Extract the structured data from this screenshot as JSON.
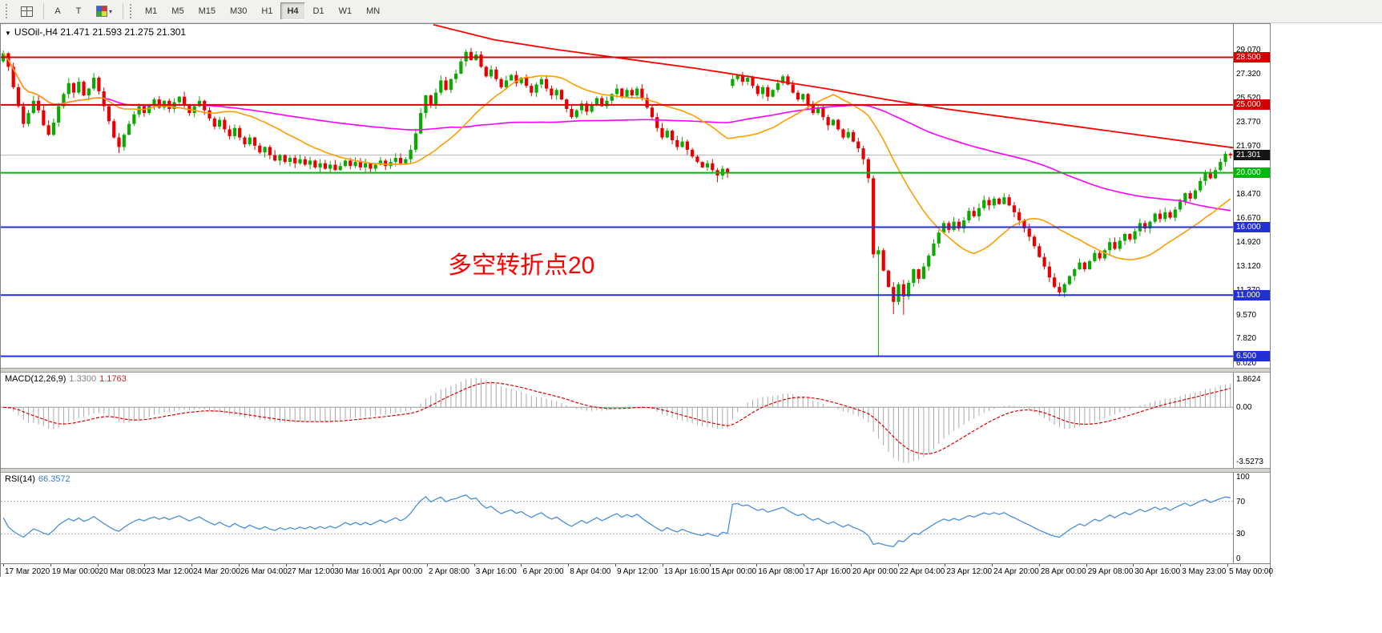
{
  "toolbar": {
    "tools": {
      "text_a": "A",
      "text_t": "T",
      "caret": "▾"
    },
    "timeframes": [
      "M1",
      "M5",
      "M15",
      "M30",
      "H1",
      "H4",
      "D1",
      "W1",
      "MN"
    ],
    "active_timeframe": "H4"
  },
  "chart_header": {
    "collapse": "▼",
    "symbol_period": "USOil-,H4",
    "ohlc": "21.471 21.593 21.275 21.301"
  },
  "annotation": {
    "text": "多空转折点20",
    "color": "#ff0000"
  },
  "price_axis": {
    "ticks": [
      {
        "v": 29.07,
        "t": "29.070"
      },
      {
        "v": 27.32,
        "t": "27.320"
      },
      {
        "v": 25.52,
        "t": "25.520"
      },
      {
        "v": 23.77,
        "t": "23.770"
      },
      {
        "v": 21.97,
        "t": "21.970"
      },
      {
        "v": 18.47,
        "t": "18.470"
      },
      {
        "v": 16.67,
        "t": "16.670"
      },
      {
        "v": 14.92,
        "t": "14.920"
      },
      {
        "v": 13.12,
        "t": "13.120"
      },
      {
        "v": 11.37,
        "t": "11.370"
      },
      {
        "v": 9.57,
        "t": "9.570"
      },
      {
        "v": 7.82,
        "t": "7.820"
      },
      {
        "v": 6.02,
        "t": "6.020"
      }
    ],
    "tags": [
      {
        "v": 28.5,
        "t": "28.500",
        "bg": "#d40000"
      },
      {
        "v": 25.0,
        "t": "25.000",
        "bg": "#d40000"
      },
      {
        "v": 21.301,
        "t": "21.301",
        "bg": "#151515"
      },
      {
        "v": 20.0,
        "t": "20.000",
        "bg": "#00b80d"
      },
      {
        "v": 16.0,
        "t": "16.000",
        "bg": "#2330d6"
      },
      {
        "v": 11.0,
        "t": "11.000",
        "bg": "#2330d6"
      },
      {
        "v": 6.5,
        "t": "6.500",
        "bg": "#2330d6"
      }
    ]
  },
  "macd_panel": {
    "name": "MACD(12,26,9)",
    "v1": "1.3300",
    "v2": "1.1763",
    "axis_top": "1.8624",
    "axis_zero": "0.00",
    "axis_bottom": "-3.5273"
  },
  "rsi_panel": {
    "name": "RSI(14)",
    "value": "66.3572",
    "axis": [
      {
        "v": 100,
        "t": "100"
      },
      {
        "v": 70,
        "t": "70"
      },
      {
        "v": 30,
        "t": "30"
      },
      {
        "v": 0,
        "t": "0"
      }
    ],
    "levels": [
      70,
      30
    ]
  },
  "time_axis": [
    "17 Mar 2020",
    "19 Mar 00:00",
    "20 Mar 08:00",
    "23 Mar 12:00",
    "24 Mar 20:00",
    "26 Mar 04:00",
    "27 Mar 12:00",
    "30 Mar 16:00",
    "1 Apr 00:00",
    "2 Apr 08:00",
    "3 Apr 16:00",
    "6 Apr 20:00",
    "8 Apr 04:00",
    "9 Apr 12:00",
    "13 Apr 16:00",
    "15 Apr 00:00",
    "16 Apr 08:00",
    "17 Apr 16:00",
    "20 Apr 00:00",
    "22 Apr 04:00",
    "23 Apr 12:00",
    "24 Apr 20:00",
    "28 Apr 00:00",
    "29 Apr 08:00",
    "30 Apr 16:00",
    "3 May 23:00",
    "5 May 00:00"
  ],
  "chart_data": {
    "type": "candlestick",
    "symbol": "USOil-",
    "period": "H4",
    "price_top": 30.95,
    "price_bottom": 5.65,
    "current_price": 21.301,
    "current_bar": {
      "o": 21.471,
      "h": 21.593,
      "l": 21.275,
      "c": 21.301
    },
    "up_color": "#0caa00",
    "down_color": "#e60000",
    "closes": [
      28.8,
      27.8,
      26.3,
      24.9,
      23.6,
      24.4,
      25.3,
      24.6,
      23.5,
      22.8,
      23.7,
      24.9,
      25.8,
      26.6,
      25.9,
      26.7,
      25.7,
      26.2,
      27.0,
      26.0,
      24.9,
      23.8,
      22.6,
      21.9,
      22.8,
      23.6,
      24.3,
      24.9,
      24.4,
      25.0,
      25.4,
      24.8,
      25.3,
      24.7,
      25.2,
      25.6,
      25.0,
      24.4,
      24.9,
      25.3,
      24.6,
      24.0,
      23.4,
      23.9,
      23.2,
      22.7,
      23.3,
      22.6,
      22.1,
      22.6,
      22.0,
      21.5,
      21.9,
      21.3,
      20.9,
      21.3,
      20.8,
      21.1,
      20.7,
      21.0,
      20.6,
      20.9,
      20.4,
      20.7,
      20.3,
      20.6,
      20.2,
      20.5,
      20.9,
      20.5,
      20.8,
      20.4,
      20.7,
      20.3,
      20.6,
      20.9,
      20.5,
      20.8,
      21.1,
      20.7,
      21.0,
      21.7,
      22.9,
      24.4,
      25.7,
      25.0,
      25.9,
      26.8,
      26.1,
      26.9,
      27.3,
      28.2,
      28.9,
      28.3,
      28.7,
      27.8,
      27.1,
      27.6,
      26.9,
      26.3,
      26.8,
      27.2,
      26.6,
      27.0,
      26.4,
      25.9,
      26.5,
      26.9,
      26.2,
      25.7,
      26.1,
      25.4,
      24.7,
      24.1,
      24.6,
      25.1,
      24.5,
      25.0,
      25.5,
      24.9,
      25.3,
      25.8,
      26.2,
      25.6,
      26.1,
      25.7,
      26.2,
      25.5,
      24.8,
      24.1,
      23.3,
      22.6,
      23.1,
      22.4,
      21.9,
      22.3,
      21.7,
      21.2,
      20.8,
      20.4,
      20.7,
      20.2,
      19.8,
      20.3,
      20.0,
      26.9,
      27.2,
      26.7,
      27.0,
      26.4,
      25.8,
      26.3,
      25.6,
      26.1,
      26.6,
      27.1,
      26.5,
      25.9,
      25.4,
      25.8,
      25.0,
      24.4,
      24.8,
      24.1,
      23.5,
      23.9,
      23.2,
      22.6,
      23.0,
      22.3,
      21.8,
      21.0,
      19.6,
      14.0,
      14.3,
      12.8,
      11.6,
      10.5,
      11.8,
      10.9,
      11.9,
      12.9,
      12.2,
      13.1,
      13.9,
      14.8,
      15.6,
      16.3,
      15.8,
      16.4,
      15.9,
      16.5,
      17.2,
      16.8,
      17.4,
      18.0,
      17.6,
      18.1,
      17.7,
      18.2,
      17.6,
      17.1,
      16.5,
      15.9,
      15.3,
      14.6,
      13.8,
      13.1,
      12.3,
      11.6,
      11.2,
      11.8,
      12.4,
      12.9,
      13.4,
      12.9,
      13.5,
      14.1,
      13.7,
      14.3,
      14.9,
      14.4,
      15.0,
      15.5,
      15.1,
      15.7,
      16.3,
      15.9,
      16.4,
      17.0,
      16.6,
      17.1,
      16.7,
      17.3,
      17.9,
      18.5,
      18.1,
      18.7,
      19.4,
      20.0,
      19.6,
      20.2,
      20.8,
      21.4,
      21.301
    ],
    "open_overrides": {
      "0": 28.2,
      "145": 26.4
    },
    "high_overrides": {
      "0": 29.0,
      "18": 27.35,
      "92": 29.07,
      "94": 28.95,
      "243": 21.59
    },
    "low_overrides": {
      "23": 21.45,
      "142": 19.3,
      "174": 6.5,
      "177": 9.6,
      "179": 9.55,
      "210": 10.9
    },
    "hlines": [
      {
        "price": 28.5,
        "color": "#d40000",
        "width": 2
      },
      {
        "price": 25.0,
        "color": "#d40000",
        "width": 2
      },
      {
        "price": 20.0,
        "color": "#00b80d",
        "width": 2
      },
      {
        "price": 16.0,
        "color": "#2330d6",
        "width": 2
      },
      {
        "price": 11.0,
        "color": "#2330d6",
        "width": 2
      },
      {
        "price": 6.5,
        "color": "#2330d6",
        "width": 2
      }
    ],
    "ma": [
      {
        "period": 90,
        "color": "#ff00ff"
      },
      {
        "period": 21,
        "color": "#ff9d00"
      }
    ],
    "slow_ma_points": [
      [
        86,
        30.9
      ],
      [
        98,
        29.8
      ],
      [
        110,
        29.1
      ],
      [
        124,
        28.4
      ],
      [
        138,
        27.7
      ],
      [
        152,
        26.9
      ],
      [
        164,
        26.2
      ],
      [
        176,
        25.4
      ],
      [
        188,
        24.7
      ],
      [
        200,
        24.1
      ],
      [
        212,
        23.5
      ],
      [
        224,
        22.9
      ],
      [
        236,
        22.3
      ],
      [
        245,
        21.85
      ]
    ],
    "indicators": {
      "macd": {
        "fast": 12,
        "slow": 26,
        "signal": 9,
        "value": 1.33,
        "signal_value": 1.1763
      },
      "rsi": {
        "period": 14,
        "value": 66.3572
      }
    }
  }
}
